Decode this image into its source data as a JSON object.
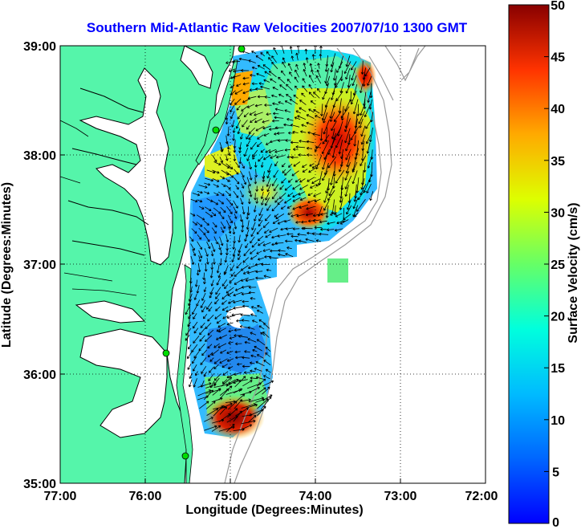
{
  "map": {
    "title": "Southern Mid-Atlantic Raw Velocities 2007/07/10 1300 GMT",
    "xlabel": "Longitude (Degrees:Minutes)",
    "ylabel": "Latitude (Degrees:Minutes)",
    "x_ticks": [
      "77:00",
      "76:00",
      "75:00",
      "74:00",
      "73:00",
      "72:00"
    ],
    "y_ticks": [
      "39:00",
      "38:00",
      "37:00",
      "36:00",
      "35:00"
    ],
    "lon_range": [
      -77,
      -72
    ],
    "lat_range": [
      35,
      39
    ],
    "grid": true,
    "colors": {
      "land": "#55f5aa",
      "title": "#0000ff",
      "coast": "#000000",
      "bathymetry": "#999999",
      "station": "#00dd00",
      "arrow": "#000000"
    }
  },
  "colorbar": {
    "label": "Surface Velocity (cm/s)",
    "ticks": [
      "0",
      "5",
      "10",
      "15",
      "20",
      "25",
      "30",
      "35",
      "40",
      "45",
      "50"
    ],
    "range": [
      0,
      50
    ],
    "colormap": "jet"
  }
}
